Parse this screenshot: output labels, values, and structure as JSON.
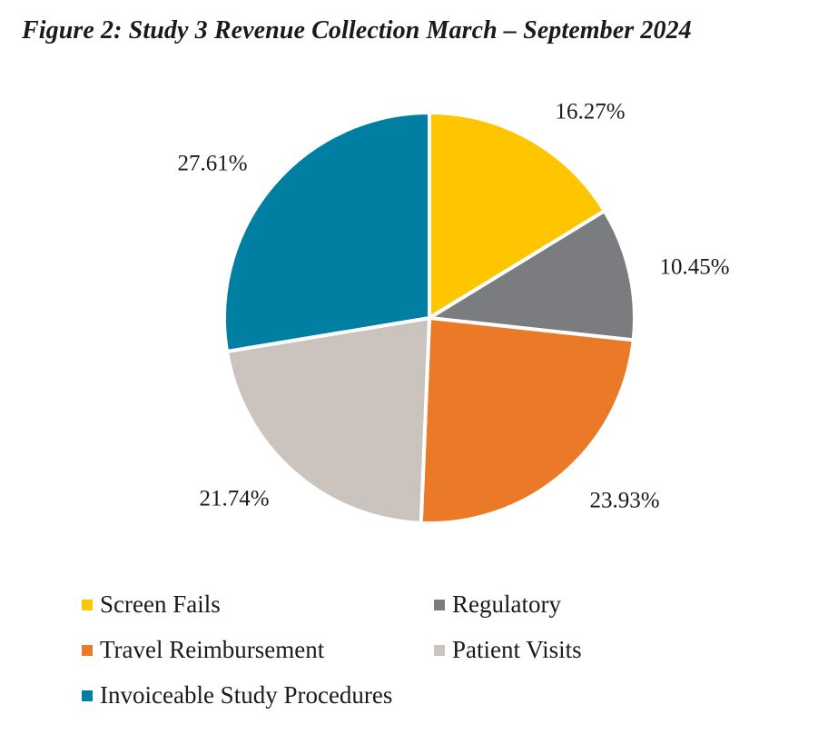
{
  "title": "Figure 2:  Study 3 Revenue Collection March – September 2024",
  "chart_data": {
    "type": "pie",
    "title": "Figure 2:  Study 3 Revenue Collection March – September 2024",
    "slices": [
      {
        "name": "Screen Fails",
        "value": 16.27,
        "label": "16.27%",
        "color": "#FFC600"
      },
      {
        "name": "Regulatory",
        "value": 10.45,
        "label": "10.45%",
        "color": "#7A7C80"
      },
      {
        "name": "Travel Reimbursement",
        "value": 23.93,
        "label": "23.93%",
        "color": "#EB7A28"
      },
      {
        "name": "Patient Visits",
        "value": 21.74,
        "label": "21.74%",
        "color": "#CBC3BD"
      },
      {
        "name": "Invoiceable Study Procedures",
        "value": 27.61,
        "label": "27.61%",
        "color": "#007FA3"
      }
    ],
    "start_angle": "12 o'clock",
    "direction": "clockwise",
    "legend_position": "bottom"
  }
}
